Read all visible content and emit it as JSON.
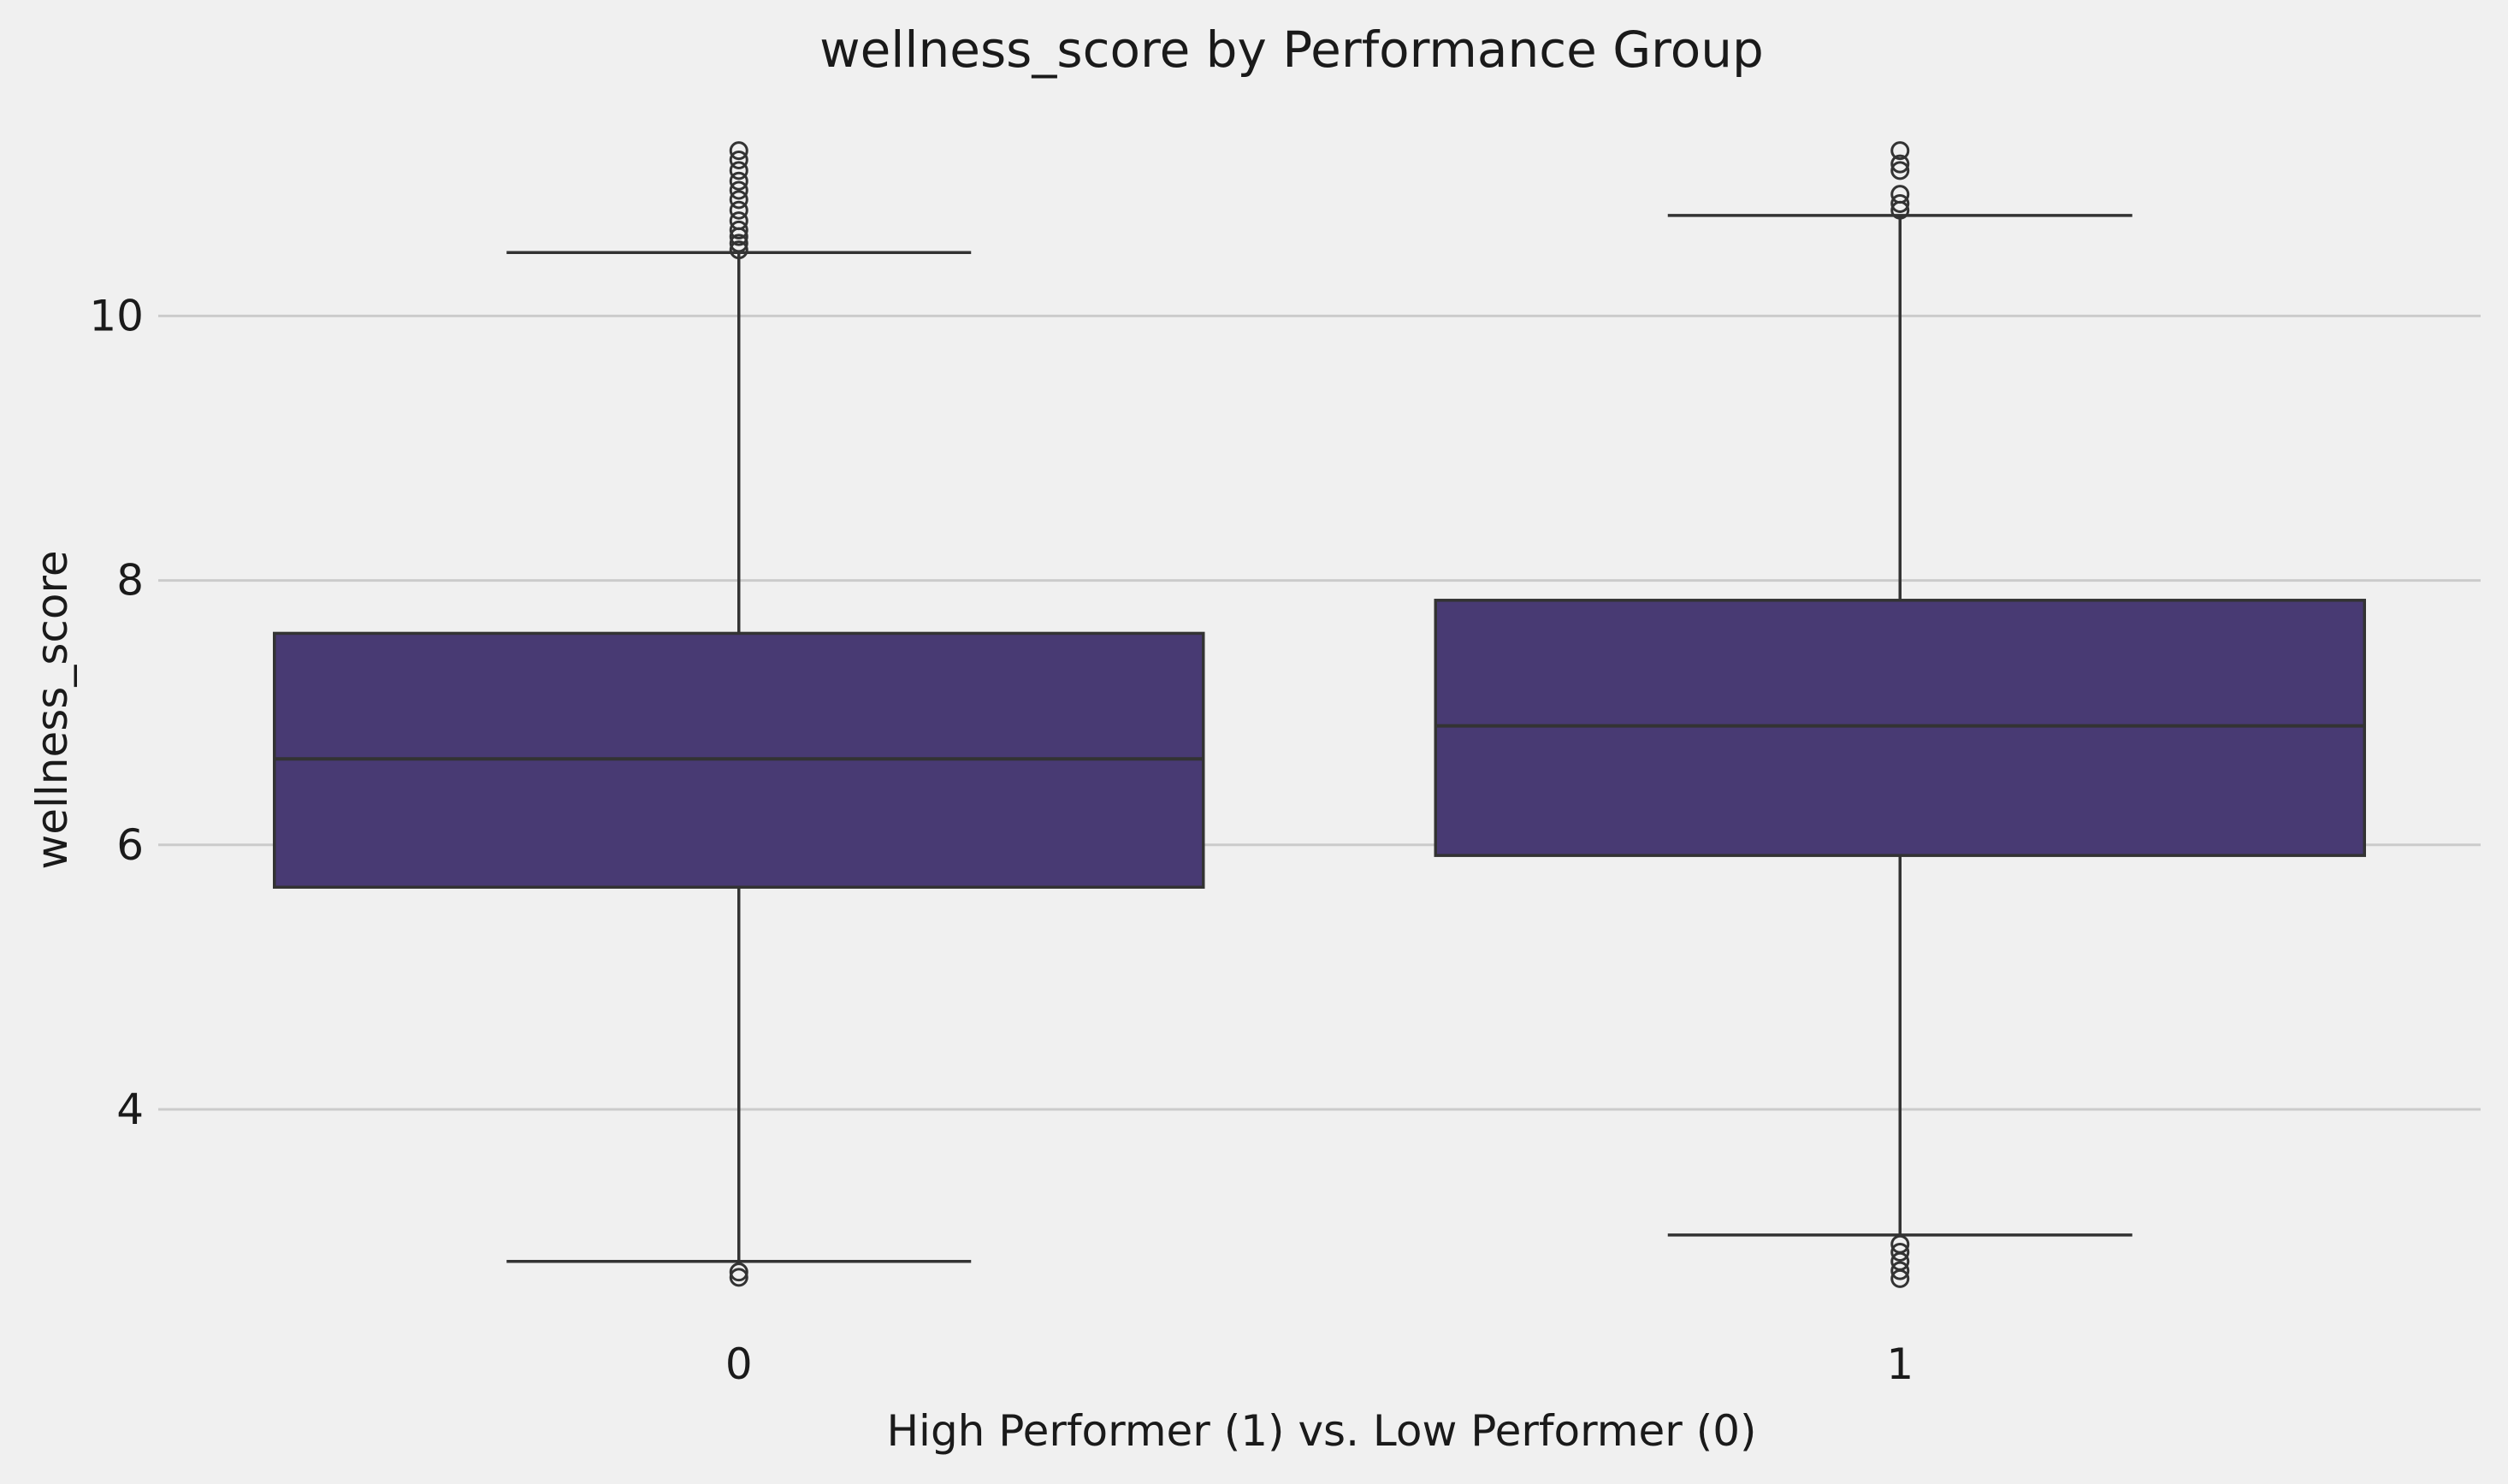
{
  "chart_data": {
    "type": "box",
    "title": "wellness_score by Performance Group",
    "xlabel": "High Performer (1) vs. Low Performer (0)",
    "ylabel": "wellness_score",
    "ylim": [
      2.45,
      11.5
    ],
    "yticks": [
      4,
      6,
      8,
      10
    ],
    "grid": "horizontal",
    "box_color": "#483a73",
    "categories": [
      "0",
      "1"
    ],
    "boxes": [
      {
        "category": "0",
        "q1": 5.68,
        "median": 6.65,
        "q3": 7.6,
        "whisker_low": 2.85,
        "whisker_high": 10.48,
        "outliers": [
          2.73,
          2.77,
          10.5,
          10.55,
          10.6,
          10.65,
          10.72,
          10.8,
          10.88,
          10.95,
          11.02,
          11.1,
          11.18,
          11.25
        ]
      },
      {
        "category": "1",
        "q1": 5.92,
        "median": 6.9,
        "q3": 7.85,
        "whisker_low": 3.05,
        "whisker_high": 10.76,
        "outliers": [
          2.72,
          2.78,
          2.85,
          2.92,
          2.98,
          10.8,
          10.85,
          10.92,
          11.1,
          11.15,
          11.25
        ]
      }
    ]
  }
}
